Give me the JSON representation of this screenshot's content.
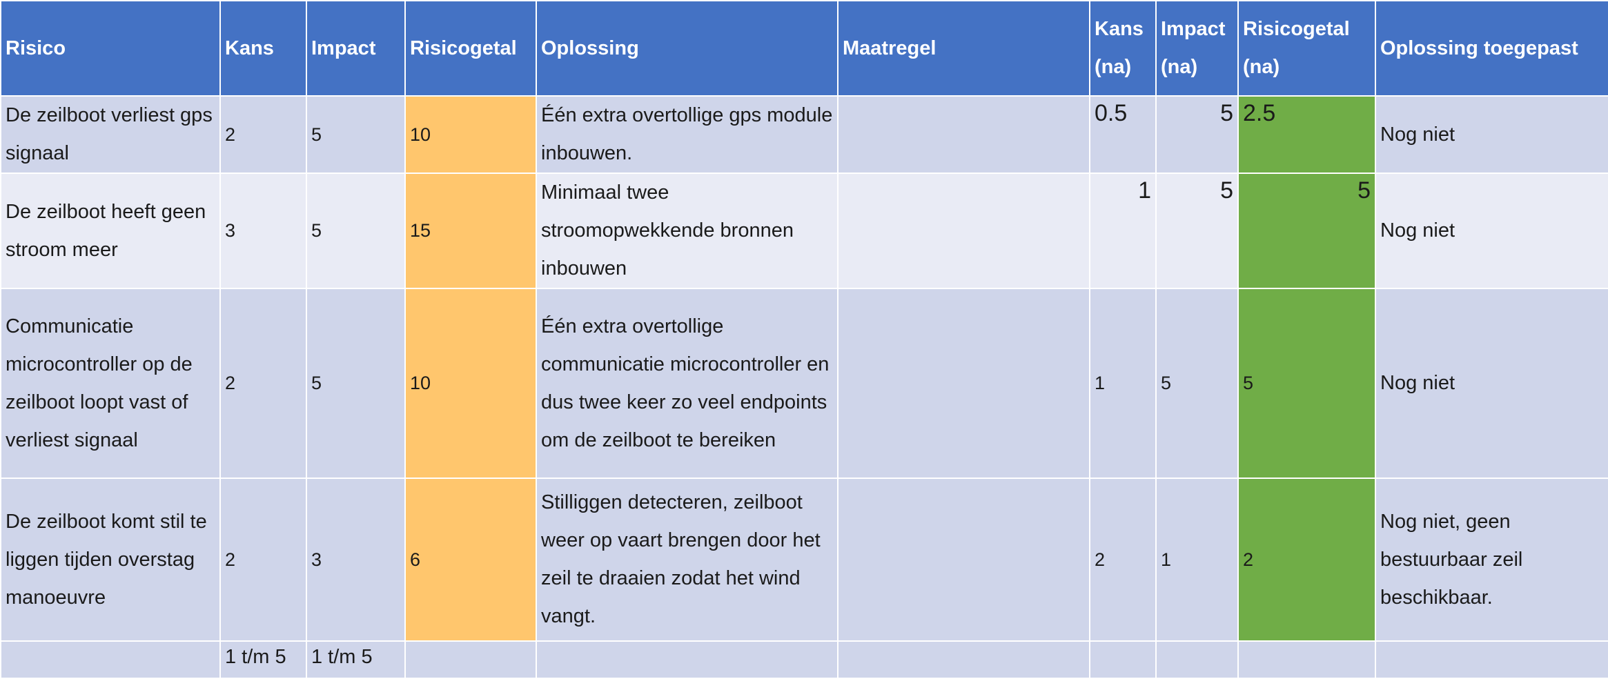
{
  "headers": {
    "risico": "Risico",
    "kans": "Kans",
    "impact": "Impact",
    "risicogetal": "Risicogetal",
    "oplossing": "Oplossing",
    "maatregel": "Maatregel",
    "kans_na_1": "Kans",
    "kans_na_2": "(na)",
    "impact_na_1": "Impact",
    "impact_na_2": "(na)",
    "risicogetal_na_1": "Risicogetal",
    "risicogetal_na_2": "(na)",
    "toegepast": "Oplossing toegepast"
  },
  "rows": [
    {
      "risico": "De zeilboot verliest gps signaal",
      "kans": "2",
      "impact": "5",
      "risicogetal": "10",
      "oplossing": "Één extra overtollige gps module inbouwen.",
      "maatregel": "",
      "kans_na": "0.5",
      "impact_na": "5",
      "risicogetal_na": "2.5",
      "toegepast": "Nog niet"
    },
    {
      "risico": "De zeilboot heeft geen stroom meer",
      "kans": "3",
      "impact": "5",
      "risicogetal": "15",
      "oplossing": "Minimaal twee stroomopwekkende bronnen inbouwen",
      "maatregel": "",
      "kans_na": "1",
      "impact_na": "5",
      "risicogetal_na": "5",
      "toegepast": "Nog niet"
    },
    {
      "risico": "Communicatie microcontroller op de zeilboot loopt vast of verliest signaal",
      "kans": "2",
      "impact": "5",
      "risicogetal": "10",
      "oplossing": "Één extra overtollige communicatie microcontroller en dus twee keer zo veel endpoints om de zeilboot te bereiken",
      "maatregel": "",
      "kans_na": "1",
      "impact_na": "5",
      "risicogetal_na": "5",
      "toegepast": "Nog niet"
    },
    {
      "risico": "De zeilboot komt stil te liggen tijden overstag manoeuvre",
      "kans": "2",
      "impact": "3",
      "risicogetal": "6",
      "oplossing": "Stilliggen detecteren, zeilboot weer op vaart brengen door het zeil te draaien zodat het wind vangt.",
      "maatregel": "",
      "kans_na": "2",
      "impact_na": "1",
      "risicogetal_na": "2",
      "toegepast": "Nog niet, geen bestuurbaar zeil beschikbaar."
    }
  ],
  "footer": {
    "kans_range": "1 t/m 5",
    "impact_range": "1 t/m 5"
  },
  "colors": {
    "header": "#4472c4",
    "band_dark": "#cfd5ea",
    "band_light": "#e9ebf5",
    "risk_before": "#ffc66d",
    "risk_after": "#70ad47"
  }
}
